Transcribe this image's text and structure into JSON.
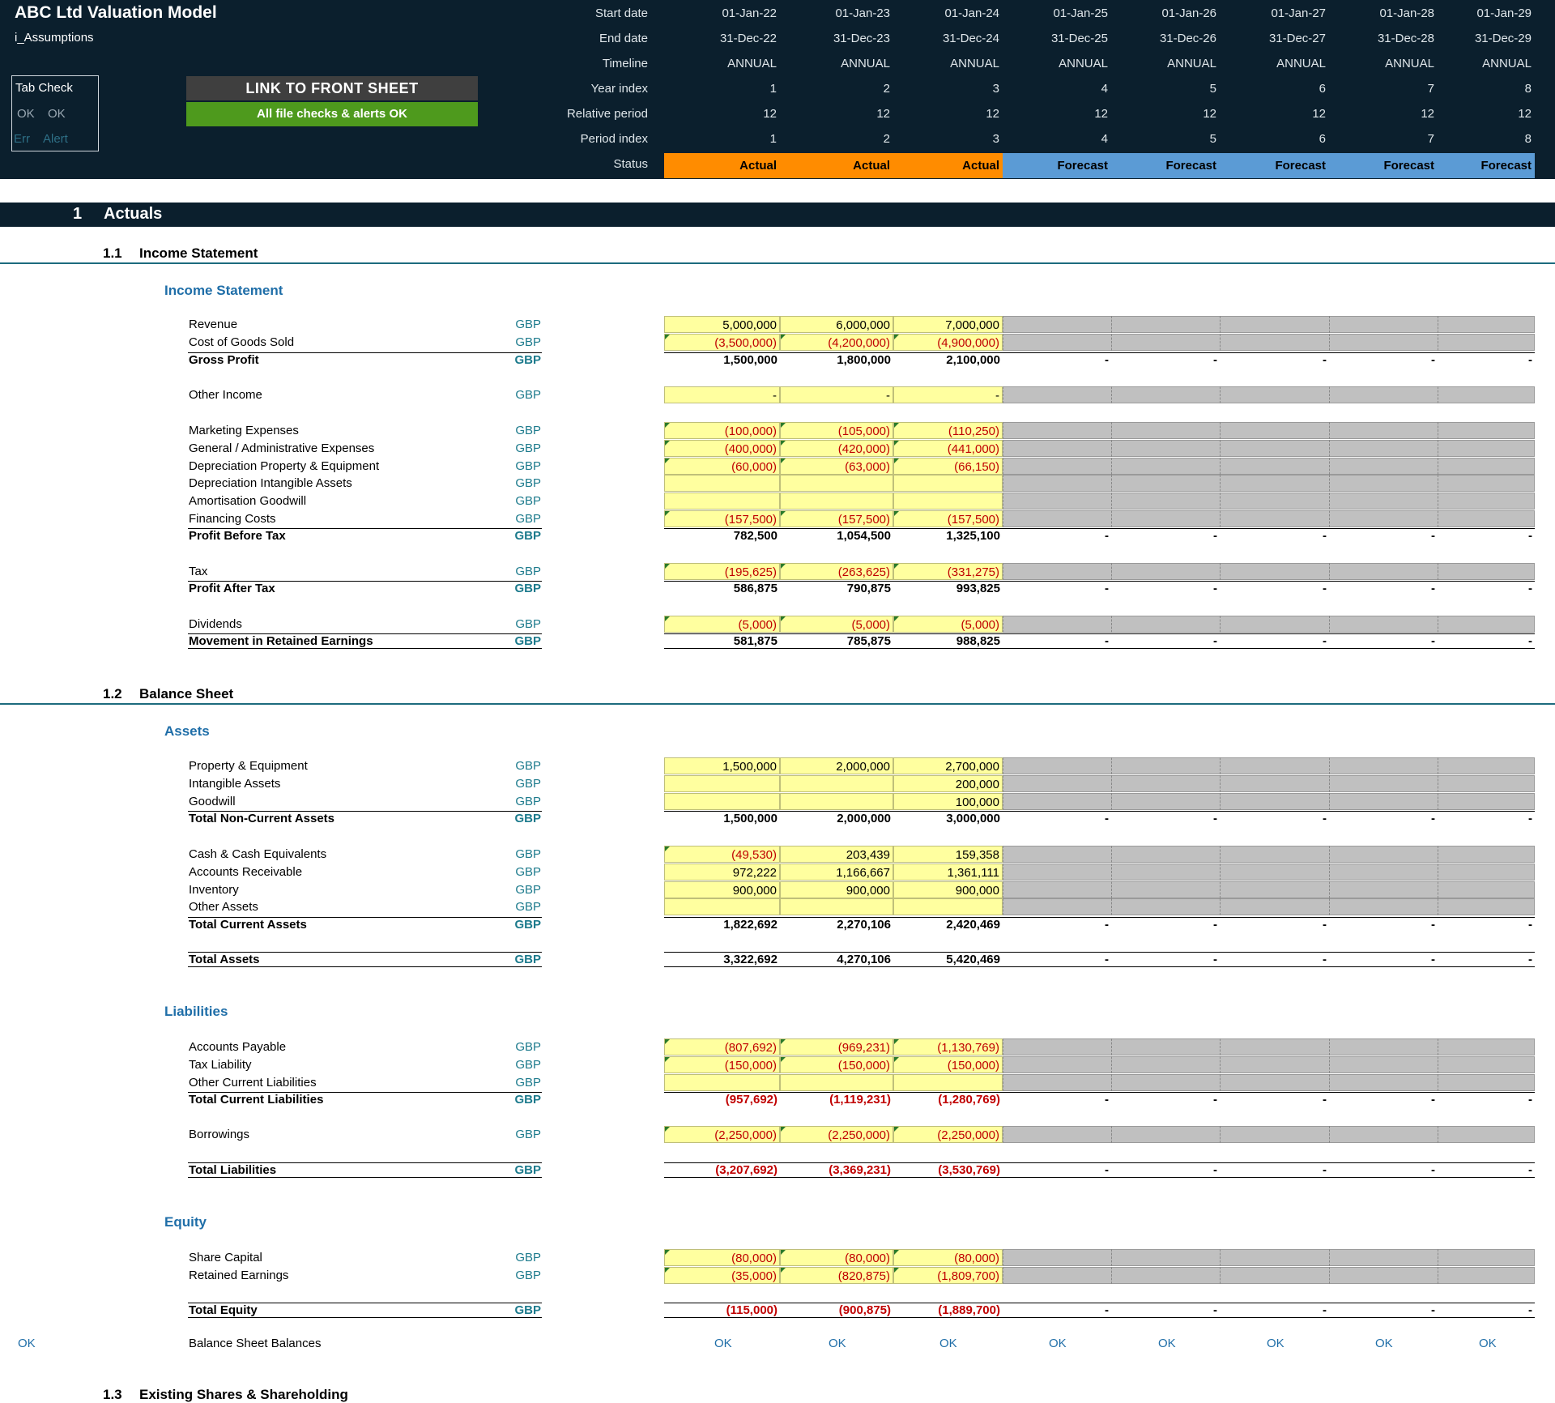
{
  "header": {
    "title": "ABC Ltd Valuation Model",
    "sheet": "i_Assumptions",
    "tab_check": {
      "title": "Tab Check",
      "ok1": "OK",
      "ok2": "OK",
      "err": "Err",
      "alert": "Alert"
    },
    "link_button": "LINK TO FRONT SHEET",
    "checks_status": "All file checks & alerts OK",
    "row_labels": [
      "Start date",
      "End date",
      "Timeline",
      "Year index",
      "Relative period",
      "Period index",
      "Status"
    ],
    "periods": [
      {
        "start": "01-Jan-22",
        "end": "31-Dec-22",
        "timeline": "ANNUAL",
        "year": "1",
        "rel": "12",
        "idx": "1",
        "status": "Actual"
      },
      {
        "start": "01-Jan-23",
        "end": "31-Dec-23",
        "timeline": "ANNUAL",
        "year": "2",
        "rel": "12",
        "idx": "2",
        "status": "Actual"
      },
      {
        "start": "01-Jan-24",
        "end": "31-Dec-24",
        "timeline": "ANNUAL",
        "year": "3",
        "rel": "12",
        "idx": "3",
        "status": "Actual"
      },
      {
        "start": "01-Jan-25",
        "end": "31-Dec-25",
        "timeline": "ANNUAL",
        "year": "4",
        "rel": "12",
        "idx": "4",
        "status": "Forecast"
      },
      {
        "start": "01-Jan-26",
        "end": "31-Dec-26",
        "timeline": "ANNUAL",
        "year": "5",
        "rel": "12",
        "idx": "5",
        "status": "Forecast"
      },
      {
        "start": "01-Jan-27",
        "end": "31-Dec-27",
        "timeline": "ANNUAL",
        "year": "6",
        "rel": "12",
        "idx": "6",
        "status": "Forecast"
      },
      {
        "start": "01-Jan-28",
        "end": "31-Dec-28",
        "timeline": "ANNUAL",
        "year": "7",
        "rel": "12",
        "idx": "7",
        "status": "Forecast"
      },
      {
        "start": "01-Jan-29",
        "end": "31-Dec-29",
        "timeline": "ANNUAL",
        "year": "8",
        "rel": "12",
        "idx": "8",
        "status": "Forecast"
      }
    ]
  },
  "section": {
    "number": "1",
    "title": "Actuals"
  },
  "income_statement": {
    "number": "1.1",
    "title": "Income Statement",
    "group": "Income Statement",
    "rows": [
      {
        "label": "Revenue",
        "unit": "GBP",
        "values": [
          "5,000,000",
          "6,000,000",
          "7,000,000"
        ]
      },
      {
        "label": "Cost of Goods Sold",
        "unit": "GBP",
        "values": [
          "(3,500,000)",
          "(4,200,000)",
          "(4,900,000)"
        ]
      },
      {
        "label": "Gross Profit",
        "unit": "GBP",
        "total": true,
        "values": [
          "1,500,000",
          "1,800,000",
          "2,100,000"
        ]
      },
      {
        "label": "Other Income",
        "unit": "GBP",
        "values": [
          "-",
          "-",
          "-"
        ]
      },
      {
        "label": "Marketing Expenses",
        "unit": "GBP",
        "values": [
          "(100,000)",
          "(105,000)",
          "(110,250)"
        ]
      },
      {
        "label": "General / Administrative Expenses",
        "unit": "GBP",
        "values": [
          "(400,000)",
          "(420,000)",
          "(441,000)"
        ]
      },
      {
        "label": "Depreciation Property & Equipment",
        "unit": "GBP",
        "values": [
          "(60,000)",
          "(63,000)",
          "(66,150)"
        ]
      },
      {
        "label": "Depreciation Intangible Assets",
        "unit": "GBP",
        "values": [
          "",
          "",
          ""
        ]
      },
      {
        "label": "Amortisation Goodwill",
        "unit": "GBP",
        "values": [
          "",
          "",
          ""
        ]
      },
      {
        "label": "Financing Costs",
        "unit": "GBP",
        "values": [
          "(157,500)",
          "(157,500)",
          "(157,500)"
        ]
      },
      {
        "label": "Profit Before Tax",
        "unit": "GBP",
        "total": true,
        "values": [
          "782,500",
          "1,054,500",
          "1,325,100"
        ]
      },
      {
        "label": "Tax",
        "unit": "GBP",
        "values": [
          "(195,625)",
          "(263,625)",
          "(331,275)"
        ]
      },
      {
        "label": "Profit After Tax",
        "unit": "GBP",
        "total": true,
        "values": [
          "586,875",
          "790,875",
          "993,825"
        ]
      },
      {
        "label": "Dividends",
        "unit": "GBP",
        "values": [
          "(5,000)",
          "(5,000)",
          "(5,000)"
        ]
      },
      {
        "label": "Movement in Retained Earnings",
        "unit": "GBP",
        "total": true,
        "values": [
          "581,875",
          "785,875",
          "988,825"
        ]
      }
    ]
  },
  "balance_sheet": {
    "number": "1.2",
    "title": "Balance Sheet",
    "assets_title": "Assets",
    "assets": [
      {
        "label": "Property & Equipment",
        "unit": "GBP",
        "values": [
          "1,500,000",
          "2,000,000",
          "2,700,000"
        ]
      },
      {
        "label": "Intangible Assets",
        "unit": "GBP",
        "values": [
          "",
          "",
          "200,000"
        ]
      },
      {
        "label": "Goodwill",
        "unit": "GBP",
        "values": [
          "",
          "",
          "100,000"
        ]
      },
      {
        "label": "Total Non-Current Assets",
        "unit": "GBP",
        "total": true,
        "values": [
          "1,500,000",
          "2,000,000",
          "3,000,000"
        ]
      },
      {
        "label": "Cash & Cash Equivalents",
        "unit": "GBP",
        "values": [
          "(49,530)",
          "203,439",
          "159,358"
        ]
      },
      {
        "label": "Accounts Receivable",
        "unit": "GBP",
        "values": [
          "972,222",
          "1,166,667",
          "1,361,111"
        ]
      },
      {
        "label": "Inventory",
        "unit": "GBP",
        "values": [
          "900,000",
          "900,000",
          "900,000"
        ]
      },
      {
        "label": "Other Assets",
        "unit": "GBP",
        "values": [
          "",
          "",
          ""
        ]
      },
      {
        "label": "Total Current Assets",
        "unit": "GBP",
        "total": true,
        "values": [
          "1,822,692",
          "2,270,106",
          "2,420,469"
        ]
      },
      {
        "label": "Total Assets",
        "unit": "GBP",
        "total": true,
        "values": [
          "3,322,692",
          "4,270,106",
          "5,420,469"
        ]
      }
    ],
    "liabilities_title": "Liabilities",
    "liabilities": [
      {
        "label": "Accounts Payable",
        "unit": "GBP",
        "values": [
          "(807,692)",
          "(969,231)",
          "(1,130,769)"
        ]
      },
      {
        "label": "Tax Liability",
        "unit": "GBP",
        "values": [
          "(150,000)",
          "(150,000)",
          "(150,000)"
        ]
      },
      {
        "label": "Other Current Liabilities",
        "unit": "GBP",
        "values": [
          "",
          "",
          ""
        ]
      },
      {
        "label": "Total Current Liabilities",
        "unit": "GBP",
        "total": true,
        "values": [
          "(957,692)",
          "(1,119,231)",
          "(1,280,769)"
        ]
      },
      {
        "label": "Borrowings",
        "unit": "GBP",
        "values": [
          "(2,250,000)",
          "(2,250,000)",
          "(2,250,000)"
        ]
      },
      {
        "label": "Total Liabilities",
        "unit": "GBP",
        "total": true,
        "values": [
          "(3,207,692)",
          "(3,369,231)",
          "(3,530,769)"
        ]
      }
    ],
    "equity_title": "Equity",
    "equity": [
      {
        "label": "Share Capital",
        "unit": "GBP",
        "values": [
          "(80,000)",
          "(80,000)",
          "(80,000)"
        ]
      },
      {
        "label": "Retained Earnings",
        "unit": "GBP",
        "values": [
          "(35,000)",
          "(820,875)",
          "(1,809,700)"
        ]
      },
      {
        "label": "Total Equity",
        "unit": "GBP",
        "total": true,
        "values": [
          "(115,000)",
          "(900,875)",
          "(1,889,700)"
        ]
      }
    ],
    "check": {
      "left": "OK",
      "label": "Balance Sheet Balances",
      "values": [
        "OK",
        "OK",
        "OK",
        "OK",
        "OK",
        "OK",
        "OK",
        "OK"
      ]
    },
    "forecast_blank": "-"
  },
  "next_section": {
    "number": "1.3",
    "title": "Existing Shares & Shareholding"
  }
}
